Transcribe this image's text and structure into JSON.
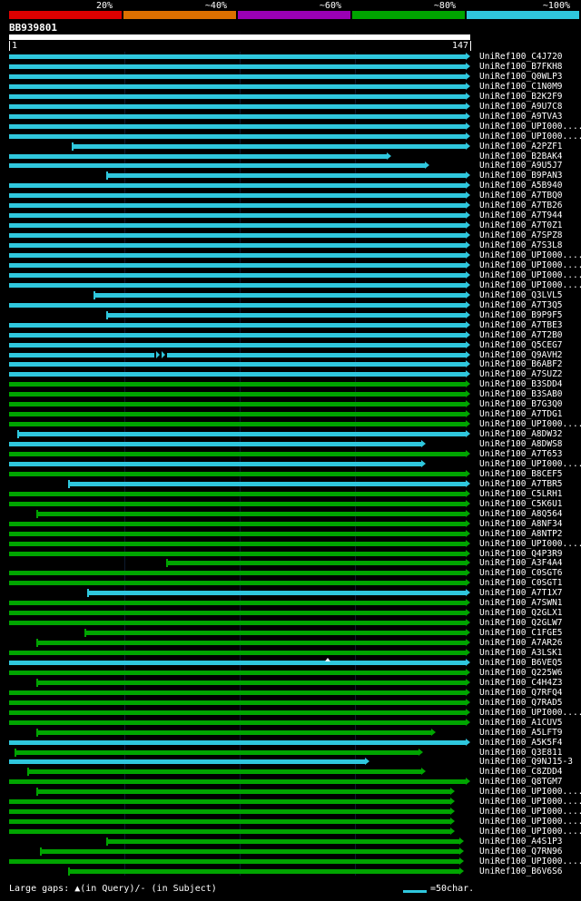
{
  "colors": {
    "background": "#000000",
    "text": "#ffffff",
    "query_bar": "#ffffff",
    "gridline": "#0d1b2e"
  },
  "scale_legend": {
    "segments": [
      {
        "label": "20%",
        "color": "#dd0000"
      },
      {
        "label": "~40%",
        "color": "#dd7000"
      },
      {
        "label": "~60%",
        "color": "#9900b3"
      },
      {
        "label": "~80%",
        "color": "#00a400"
      },
      {
        "label": "~100%",
        "color": "#2fc7dd"
      }
    ]
  },
  "query": {
    "name": "BB939801",
    "axis_start": "1",
    "axis_end": "147"
  },
  "footer": {
    "gaps_note": "Large gaps: ▲(in Query)/- (in Subject)",
    "scale_marker_label": "=50char."
  },
  "chart_data": {
    "type": "bar",
    "subtype": "blast-hit-alignment-overview",
    "title": "BB939801",
    "x_axis": {
      "label": "query position",
      "min": 1,
      "max": 147
    },
    "identity_legend": [
      "20%",
      "~40%",
      "~60%",
      "~80%",
      "~100%"
    ],
    "colors_by_identity": {
      "~100%": "#2fc7dd",
      "~80%": "#00a400"
    },
    "hits": [
      {
        "label": "UniRef100_C4J720",
        "identity": "~100%",
        "start": 1,
        "end": 147
      },
      {
        "label": "UniRef100_B7FKH8",
        "identity": "~100%",
        "start": 1,
        "end": 147
      },
      {
        "label": "UniRef100_Q0WLP3",
        "identity": "~100%",
        "start": 1,
        "end": 147
      },
      {
        "label": "UniRef100_C1N0M9",
        "identity": "~100%",
        "start": 1,
        "end": 147
      },
      {
        "label": "UniRef100_B2K2F9",
        "identity": "~100%",
        "start": 1,
        "end": 147
      },
      {
        "label": "UniRef100_A9U7C8",
        "identity": "~100%",
        "start": 1,
        "end": 147
      },
      {
        "label": "UniRef100_A9TVA3",
        "identity": "~100%",
        "start": 1,
        "end": 147
      },
      {
        "label": "UniRef100_UPI000....",
        "identity": "~100%",
        "start": 1,
        "end": 147
      },
      {
        "label": "UniRef100_UPI000....",
        "identity": "~100%",
        "start": 1,
        "end": 147
      },
      {
        "label": "UniRef100_A2PZF1",
        "identity": "~100%",
        "start": 21,
        "end": 147
      },
      {
        "label": "UniRef100_B2BAK4",
        "identity": "~100%",
        "start": 1,
        "end": 122
      },
      {
        "label": "UniRef100_A9U5J7",
        "identity": "~100%",
        "start": 1,
        "end": 134
      },
      {
        "label": "UniRef100_B9PAN3",
        "identity": "~100%",
        "start": 32,
        "end": 147
      },
      {
        "label": "UniRef100_A5B940",
        "identity": "~100%",
        "start": 1,
        "end": 147
      },
      {
        "label": "UniRef100_A7TBQ0",
        "identity": "~100%",
        "start": 1,
        "end": 147
      },
      {
        "label": "UniRef100_A7TB26",
        "identity": "~100%",
        "start": 1,
        "end": 147
      },
      {
        "label": "UniRef100_A7T944",
        "identity": "~100%",
        "start": 1,
        "end": 147
      },
      {
        "label": "UniRef100_A7T0Z1",
        "identity": "~100%",
        "start": 1,
        "end": 147
      },
      {
        "label": "UniRef100_A7SPZ8",
        "identity": "~100%",
        "start": 1,
        "end": 147
      },
      {
        "label": "UniRef100_A7S3L8",
        "identity": "~100%",
        "start": 1,
        "end": 147
      },
      {
        "label": "UniRef100_UPI000....",
        "identity": "~100%",
        "start": 1,
        "end": 147
      },
      {
        "label": "UniRef100_UPI000....",
        "identity": "~100%",
        "start": 1,
        "end": 147
      },
      {
        "label": "UniRef100_UPI000....",
        "identity": "~100%",
        "start": 1,
        "end": 147
      },
      {
        "label": "UniRef100_UPI000....",
        "identity": "~100%",
        "start": 1,
        "end": 147
      },
      {
        "label": "UniRef100_Q3LVL5",
        "identity": "~100%",
        "start": 28,
        "end": 147
      },
      {
        "label": "UniRef100_A7T3Q5",
        "identity": "~100%",
        "start": 1,
        "end": 147
      },
      {
        "label": "UniRef100_B9P9F5",
        "identity": "~100%",
        "start": 32,
        "end": 147
      },
      {
        "label": "UniRef100_A7TBE3",
        "identity": "~100%",
        "start": 1,
        "end": 147
      },
      {
        "label": "UniRef100_A7T2B0",
        "identity": "~100%",
        "start": 1,
        "end": 147
      },
      {
        "label": "UniRef100_Q5CEG7",
        "identity": "~100%",
        "start": 1,
        "end": 147
      },
      {
        "label": "UniRef100_Q9AVH2",
        "identity": "~100%",
        "start": 1,
        "end": 147,
        "markers": [
          {
            "pos": 49,
            "kind": "gap-subject"
          }
        ]
      },
      {
        "label": "UniRef100_B6ABF2",
        "identity": "~100%",
        "start": 1,
        "end": 147
      },
      {
        "label": "UniRef100_A7SUZ2",
        "identity": "~100%",
        "start": 1,
        "end": 147
      },
      {
        "label": "UniRef100_B3SDD4",
        "identity": "~80%",
        "start": 1,
        "end": 147
      },
      {
        "label": "UniRef100_B3SAB0",
        "identity": "~80%",
        "start": 1,
        "end": 147
      },
      {
        "label": "UniRef100_B7G3Q0",
        "identity": "~80%",
        "start": 1,
        "end": 147
      },
      {
        "label": "UniRef100_A7TDG1",
        "identity": "~80%",
        "start": 1,
        "end": 147
      },
      {
        "label": "UniRef100_UPI000....",
        "identity": "~80%",
        "start": 1,
        "end": 147
      },
      {
        "label": "UniRef100_A8DW32",
        "identity": "~100%",
        "start": 4,
        "end": 147
      },
      {
        "label": "UniRef100_A8DWS8",
        "identity": "~100%",
        "start": 1,
        "end": 133
      },
      {
        "label": "UniRef100_A7T653",
        "identity": "~80%",
        "start": 1,
        "end": 147
      },
      {
        "label": "UniRef100_UPI000....",
        "identity": "~100%",
        "start": 1,
        "end": 133
      },
      {
        "label": "UniRef100_B8CEF5",
        "identity": "~80%",
        "start": 1,
        "end": 147
      },
      {
        "label": "UniRef100_A7TBR5",
        "identity": "~100%",
        "start": 20,
        "end": 147
      },
      {
        "label": "UniRef100_C5LRH1",
        "identity": "~80%",
        "start": 1,
        "end": 147
      },
      {
        "label": "UniRef100_C5K6U1",
        "identity": "~80%",
        "start": 1,
        "end": 147
      },
      {
        "label": "UniRef100_A8Q564",
        "identity": "~80%",
        "start": 10,
        "end": 147
      },
      {
        "label": "UniRef100_A8NF34",
        "identity": "~80%",
        "start": 1,
        "end": 147
      },
      {
        "label": "UniRef100_A8NTP2",
        "identity": "~80%",
        "start": 1,
        "end": 147
      },
      {
        "label": "UniRef100_UPI000....",
        "identity": "~80%",
        "start": 1,
        "end": 147
      },
      {
        "label": "UniRef100_Q4P3R9",
        "identity": "~80%",
        "start": 1,
        "end": 147
      },
      {
        "label": "UniRef100_A3F4A4",
        "identity": "~80%",
        "start": 51,
        "end": 147
      },
      {
        "label": "UniRef100_C0SGT6",
        "identity": "~80%",
        "start": 1,
        "end": 147
      },
      {
        "label": "UniRef100_C0SGT1",
        "identity": "~80%",
        "start": 1,
        "end": 147
      },
      {
        "label": "UniRef100_A7T1X7",
        "identity": "~100%",
        "start": 26,
        "end": 147
      },
      {
        "label": "UniRef100_A7SWN1",
        "identity": "~80%",
        "start": 1,
        "end": 147
      },
      {
        "label": "UniRef100_Q2GLX1",
        "identity": "~80%",
        "start": 1,
        "end": 147
      },
      {
        "label": "UniRef100_Q2GLW7",
        "identity": "~80%",
        "start": 1,
        "end": 147
      },
      {
        "label": "UniRef100_C1FGE5",
        "identity": "~80%",
        "start": 25,
        "end": 147
      },
      {
        "label": "UniRef100_A7AR26",
        "identity": "~80%",
        "start": 10,
        "end": 147
      },
      {
        "label": "UniRef100_A3LSK1",
        "identity": "~80%",
        "start": 1,
        "end": 147
      },
      {
        "label": "UniRef100_B6VEQ5",
        "identity": "~100%",
        "start": 1,
        "end": 147,
        "markers": [
          {
            "pos": 102,
            "kind": "gap-query"
          }
        ]
      },
      {
        "label": "UniRef100_Q225W6",
        "identity": "~80%",
        "start": 1,
        "end": 147
      },
      {
        "label": "UniRef100_C4H4Z3",
        "identity": "~80%",
        "start": 10,
        "end": 147
      },
      {
        "label": "UniRef100_Q7RFQ4",
        "identity": "~80%",
        "start": 1,
        "end": 147
      },
      {
        "label": "UniRef100_Q7RAD5",
        "identity": "~80%",
        "start": 1,
        "end": 147
      },
      {
        "label": "UniRef100_UPI000....",
        "identity": "~80%",
        "start": 1,
        "end": 147
      },
      {
        "label": "UniRef100_A1CUV5",
        "identity": "~80%",
        "start": 1,
        "end": 147
      },
      {
        "label": "UniRef100_A5LFT9",
        "identity": "~80%",
        "start": 10,
        "end": 136
      },
      {
        "label": "UniRef100_A5K5F4",
        "identity": "~100%",
        "start": 1,
        "end": 147
      },
      {
        "label": "UniRef100_Q3E811",
        "identity": "~80%",
        "start": 3,
        "end": 132
      },
      {
        "label": "UniRef100_Q9NJ15-3",
        "identity": "~100%",
        "start": 1,
        "end": 115
      },
      {
        "label": "UniRef100_C8ZDD4",
        "identity": "~80%",
        "start": 7,
        "end": 133
      },
      {
        "label": "UniRef100_Q8TGM7",
        "identity": "~80%",
        "start": 1,
        "end": 147
      },
      {
        "label": "UniRef100_UPI000....",
        "identity": "~80%",
        "start": 10,
        "end": 142
      },
      {
        "label": "UniRef100_UPI000....",
        "identity": "~80%",
        "start": 1,
        "end": 142
      },
      {
        "label": "UniRef100_UPI000....",
        "identity": "~80%",
        "start": 1,
        "end": 142
      },
      {
        "label": "UniRef100_UPI000....",
        "identity": "~80%",
        "start": 1,
        "end": 142
      },
      {
        "label": "UniRef100_UPI000....",
        "identity": "~80%",
        "start": 1,
        "end": 142
      },
      {
        "label": "UniRef100_A4S1P3",
        "identity": "~80%",
        "start": 32,
        "end": 145
      },
      {
        "label": "UniRef100_Q7RN96",
        "identity": "~80%",
        "start": 11,
        "end": 145
      },
      {
        "label": "UniRef100_UPI000....",
        "identity": "~80%",
        "start": 1,
        "end": 145
      },
      {
        "label": "UniRef100_B6V6S6",
        "identity": "~80%",
        "start": 20,
        "end": 145
      }
    ]
  }
}
